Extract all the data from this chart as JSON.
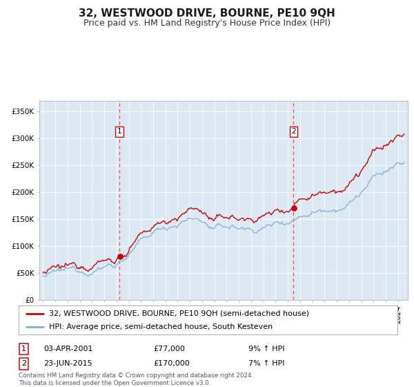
{
  "title": "32, WESTWOOD DRIVE, BOURNE, PE10 9QH",
  "subtitle": "Price paid vs. HM Land Registry's House Price Index (HPI)",
  "title_fontsize": 11,
  "subtitle_fontsize": 9,
  "background_color": "#ffffff",
  "plot_bg_color": "#dce9f5",
  "ylim": [
    0,
    370000
  ],
  "yticks": [
    0,
    50000,
    100000,
    150000,
    200000,
    250000,
    300000,
    350000
  ],
  "ytick_labels": [
    "£0",
    "£50K",
    "£100K",
    "£150K",
    "£200K",
    "£250K",
    "£300K",
    "£350K"
  ],
  "year_start": 1995,
  "year_end": 2024,
  "sale1_date": 2001.25,
  "sale1_price": 77000,
  "sale1_label": "1",
  "sale2_date": 2015.47,
  "sale2_price": 170000,
  "sale2_label": "2",
  "hpi_color": "#7bafd4",
  "price_color": "#cc0000",
  "marker_color": "#cc0000",
  "dashed_color": "#ff4444",
  "legend_line1": "32, WESTWOOD DRIVE, BOURNE, PE10 9QH (semi-detached house)",
  "legend_line2": "HPI: Average price, semi-detached house, South Kesteven",
  "table_row1_label": "1",
  "table_row1_date": "03-APR-2001",
  "table_row1_price": "£77,000",
  "table_row1_hpi": "9% ↑ HPI",
  "table_row2_label": "2",
  "table_row2_date": "23-JUN-2015",
  "table_row2_price": "£170,000",
  "table_row2_hpi": "7% ↑ HPI",
  "footer": "Contains HM Land Registry data © Crown copyright and database right 2024.\nThis data is licensed under the Open Government Licence v3.0.",
  "grid_color": "#ffffff",
  "tick_fontsize": 7.5,
  "legend_fontsize": 8
}
